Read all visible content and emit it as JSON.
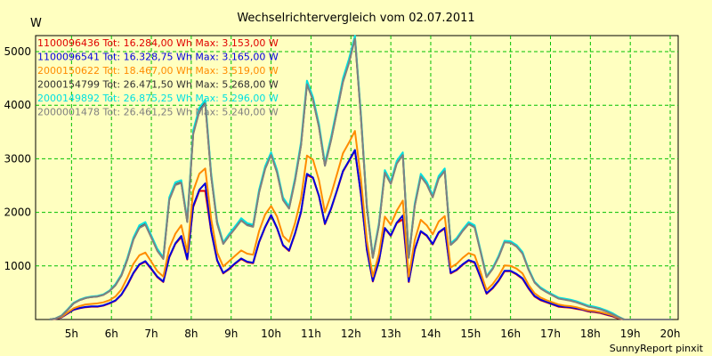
{
  "chart_data": {
    "type": "line",
    "title": "Wechselrichtervergleich vom 02.07.2011",
    "ylabel": "W",
    "xlabel": "",
    "footer": "SunnyReport pinxit",
    "x_range_hours": [
      4.1,
      20.2
    ],
    "ylim": [
      0,
      5300
    ],
    "grid": true,
    "legend_position": "top-left",
    "x_ticks": [
      {
        "hour": 5,
        "label": "5h"
      },
      {
        "hour": 6,
        "label": "6h"
      },
      {
        "hour": 7,
        "label": "7h"
      },
      {
        "hour": 8,
        "label": "8h"
      },
      {
        "hour": 9,
        "label": "9h"
      },
      {
        "hour": 10,
        "label": "10h"
      },
      {
        "hour": 11,
        "label": "11h"
      },
      {
        "hour": 12,
        "label": "12h"
      },
      {
        "hour": 13,
        "label": "13h"
      },
      {
        "hour": 14,
        "label": "14h"
      },
      {
        "hour": 15,
        "label": "15h"
      },
      {
        "hour": 16,
        "label": "16h"
      },
      {
        "hour": 17,
        "label": "17h"
      },
      {
        "hour": 18,
        "label": "18h"
      },
      {
        "hour": 19,
        "label": "19h"
      },
      {
        "hour": 20,
        "label": "20h"
      }
    ],
    "y_ticks": [
      {
        "value": 1000,
        "label": "1000"
      },
      {
        "value": 2000,
        "label": "2000"
      },
      {
        "value": 3000,
        "label": "3000"
      },
      {
        "value": 4000,
        "label": "4000"
      },
      {
        "value": 5000,
        "label": "5000"
      }
    ],
    "x": [
      4.45,
      4.6,
      4.75,
      4.9,
      5.05,
      5.2,
      5.35,
      5.5,
      5.65,
      5.8,
      5.95,
      6.1,
      6.25,
      6.4,
      6.55,
      6.7,
      6.85,
      7.0,
      7.15,
      7.3,
      7.45,
      7.6,
      7.75,
      7.9,
      8.05,
      8.2,
      8.35,
      8.5,
      8.65,
      8.8,
      8.95,
      9.1,
      9.25,
      9.4,
      9.55,
      9.7,
      9.85,
      10.0,
      10.15,
      10.3,
      10.45,
      10.6,
      10.75,
      10.9,
      11.05,
      11.2,
      11.35,
      11.5,
      11.65,
      11.8,
      11.95,
      12.1,
      12.25,
      12.4,
      12.55,
      12.7,
      12.85,
      13.0,
      13.15,
      13.3,
      13.45,
      13.6,
      13.75,
      13.9,
      14.05,
      14.2,
      14.35,
      14.5,
      14.65,
      14.8,
      14.95,
      15.1,
      15.25,
      15.4,
      15.55,
      15.7,
      15.85,
      16.0,
      16.15,
      16.3,
      16.45,
      16.6,
      16.75,
      16.9,
      17.05,
      17.2,
      17.35,
      17.5,
      17.65,
      17.8,
      17.95,
      18.1,
      18.25,
      18.4,
      18.55,
      18.7,
      18.85,
      19.0,
      19.15,
      19.3,
      19.45,
      19.6,
      19.75,
      19.9,
      20.05
    ],
    "series": [
      {
        "name": "1100096436 Tot: 16.284,00 Wh Max: 3.153,00 W",
        "color": "#e00000",
        "values": [
          0,
          10,
          40,
          110,
          180,
          210,
          230,
          240,
          240,
          260,
          300,
          350,
          460,
          640,
          860,
          1020,
          1080,
          940,
          790,
          700,
          1160,
          1410,
          1540,
          1120,
          2100,
          2400,
          2400,
          1640,
          1100,
          860,
          940,
          1040,
          1130,
          1070,
          1050,
          1440,
          1720,
          1940,
          1700,
          1380,
          1280,
          1600,
          2000,
          2700,
          2640,
          2300,
          1780,
          2060,
          2400,
          2760,
          2950,
          3153,
          2340,
          1300,
          710,
          1080,
          1700,
          1560,
          1800,
          1870,
          700,
          1300,
          1640,
          1560,
          1400,
          1620,
          1700,
          860,
          920,
          1020,
          1100,
          1060,
          780,
          480,
          580,
          720,
          900,
          900,
          840,
          760,
          580,
          430,
          360,
          320,
          280,
          240,
          230,
          220,
          200,
          180,
          150,
          140,
          120,
          90,
          60,
          20,
          0,
          0,
          0,
          0,
          0,
          0,
          0,
          0,
          0
        ]
      },
      {
        "name": "1100096541 Tot: 16.328,75 Wh Max: 3.165,00 W",
        "color": "#0000e0",
        "values": [
          0,
          12,
          42,
          115,
          185,
          215,
          235,
          245,
          245,
          265,
          305,
          355,
          465,
          650,
          870,
          1030,
          1090,
          950,
          800,
          710,
          1170,
          1420,
          1560,
          1130,
          2120,
          2420,
          2540,
          1650,
          1110,
          870,
          950,
          1050,
          1140,
          1080,
          1060,
          1450,
          1730,
          1950,
          1710,
          1390,
          1290,
          1610,
          2010,
          2720,
          2650,
          2310,
          1790,
          2070,
          2410,
          2770,
          2960,
          3165,
          2350,
          1310,
          720,
          1090,
          1710,
          1570,
          1810,
          1940,
          710,
          1310,
          1650,
          1570,
          1410,
          1630,
          1710,
          870,
          930,
          1030,
          1110,
          1070,
          790,
          490,
          590,
          730,
          910,
          910,
          850,
          770,
          590,
          440,
          370,
          330,
          290,
          250,
          240,
          230,
          210,
          190,
          160,
          150,
          130,
          100,
          70,
          25,
          0,
          0,
          0,
          0,
          0,
          0,
          0,
          0,
          0
        ]
      },
      {
        "name": "2000150622 Tot: 18.467,00 Wh Max: 3.519,00 W",
        "color": "#ff8c00",
        "values": [
          0,
          15,
          50,
          130,
          210,
          250,
          280,
          290,
          300,
          320,
          360,
          430,
          560,
          780,
          1040,
          1200,
          1250,
          1080,
          900,
          800,
          1330,
          1600,
          1760,
          1260,
          2400,
          2720,
          2820,
          1870,
          1250,
          990,
          1090,
          1190,
          1290,
          1230,
          1210,
          1650,
          1960,
          2120,
          1920,
          1560,
          1450,
          1800,
          2260,
          3060,
          2980,
          2600,
          2000,
          2330,
          2710,
          3100,
          3300,
          3519,
          2630,
          1470,
          800,
          1220,
          1920,
          1770,
          2030,
          2220,
          800,
          1480,
          1860,
          1760,
          1590,
          1830,
          1930,
          970,
          1040,
          1150,
          1240,
          1200,
          880,
          550,
          660,
          810,
          1010,
          1000,
          950,
          860,
          650,
          490,
          410,
          360,
          320,
          280,
          260,
          250,
          230,
          200,
          170,
          160,
          140,
          110,
          80,
          30,
          0,
          0,
          0,
          0,
          0,
          0,
          0,
          0,
          0
        ]
      },
      {
        "name": "2000154799 Tot: 26.471,50 Wh Max: 5.268,00 W",
        "color": "#303030",
        "values": [
          0,
          20,
          70,
          180,
          300,
          360,
          400,
          420,
          430,
          460,
          530,
          640,
          820,
          1120,
          1500,
          1720,
          1780,
          1540,
          1290,
          1140,
          2240,
          2520,
          2560,
          1830,
          3480,
          3900,
          4050,
          2680,
          1800,
          1420,
          1570,
          1710,
          1860,
          1770,
          1740,
          2380,
          2820,
          3080,
          2750,
          2240,
          2080,
          2600,
          3260,
          4400,
          4100,
          3600,
          2880,
          3350,
          3890,
          4450,
          4800,
          5268,
          3800,
          2100,
          1160,
          1760,
          2750,
          2540,
          2920,
          3080,
          1160,
          2130,
          2680,
          2530,
          2290,
          2640,
          2780,
          1400,
          1500,
          1660,
          1790,
          1730,
          1270,
          800,
          950,
          1170,
          1450,
          1440,
          1370,
          1240,
          940,
          700,
          590,
          520,
          460,
          400,
          380,
          360,
          330,
          290,
          250,
          230,
          200,
          160,
          110,
          50,
          0,
          0,
          0,
          0,
          0,
          0,
          0,
          0,
          0
        ]
      },
      {
        "name": "2000149892 Tot: 26.875,25 Wh Max: 5.296,00 W",
        "color": "#00e0e0",
        "values": [
          0,
          22,
          75,
          190,
          310,
          370,
          410,
          430,
          440,
          470,
          540,
          660,
          840,
          1150,
          1530,
          1760,
          1820,
          1570,
          1320,
          1160,
          2280,
          2560,
          2600,
          1860,
          3530,
          3950,
          4100,
          2720,
          1830,
          1440,
          1600,
          1740,
          1890,
          1800,
          1770,
          2420,
          2860,
          3120,
          2790,
          2280,
          2110,
          2640,
          3310,
          4460,
          4150,
          3650,
          2920,
          3400,
          3940,
          4500,
          4860,
          5296,
          3850,
          2130,
          1180,
          1790,
          2790,
          2580,
          2960,
          3120,
          1180,
          2160,
          2720,
          2570,
          2320,
          2680,
          2820,
          1420,
          1520,
          1680,
          1820,
          1760,
          1290,
          810,
          960,
          1190,
          1470,
          1460,
          1390,
          1260,
          950,
          710,
          600,
          530,
          470,
          410,
          390,
          370,
          340,
          300,
          260,
          240,
          210,
          170,
          120,
          55,
          0,
          0,
          0,
          0,
          0,
          0,
          0,
          0,
          0
        ]
      },
      {
        "name": "2000001478 Tot: 26.461,25 Wh Max: 5.240,00 W",
        "color": "#808080",
        "values": [
          0,
          20,
          70,
          180,
          300,
          360,
          400,
          420,
          430,
          460,
          530,
          640,
          820,
          1120,
          1490,
          1710,
          1770,
          1530,
          1280,
          1130,
          2230,
          2510,
          2550,
          1820,
          3460,
          3880,
          4030,
          2670,
          1790,
          1410,
          1560,
          1700,
          1850,
          1760,
          1730,
          2370,
          2810,
          3070,
          2740,
          2230,
          2070,
          2590,
          3250,
          4390,
          4090,
          3590,
          2870,
          3340,
          3880,
          4430,
          4780,
          5240,
          3790,
          2090,
          1150,
          1750,
          2740,
          2530,
          2910,
          3070,
          1150,
          2120,
          2670,
          2520,
          2280,
          2630,
          2770,
          1390,
          1490,
          1650,
          1780,
          1720,
          1260,
          790,
          940,
          1160,
          1440,
          1430,
          1360,
          1230,
          930,
          690,
          580,
          510,
          450,
          390,
          370,
          350,
          320,
          280,
          240,
          220,
          190,
          150,
          100,
          45,
          0,
          0,
          0,
          0,
          0,
          0,
          0,
          0,
          0
        ]
      }
    ]
  }
}
